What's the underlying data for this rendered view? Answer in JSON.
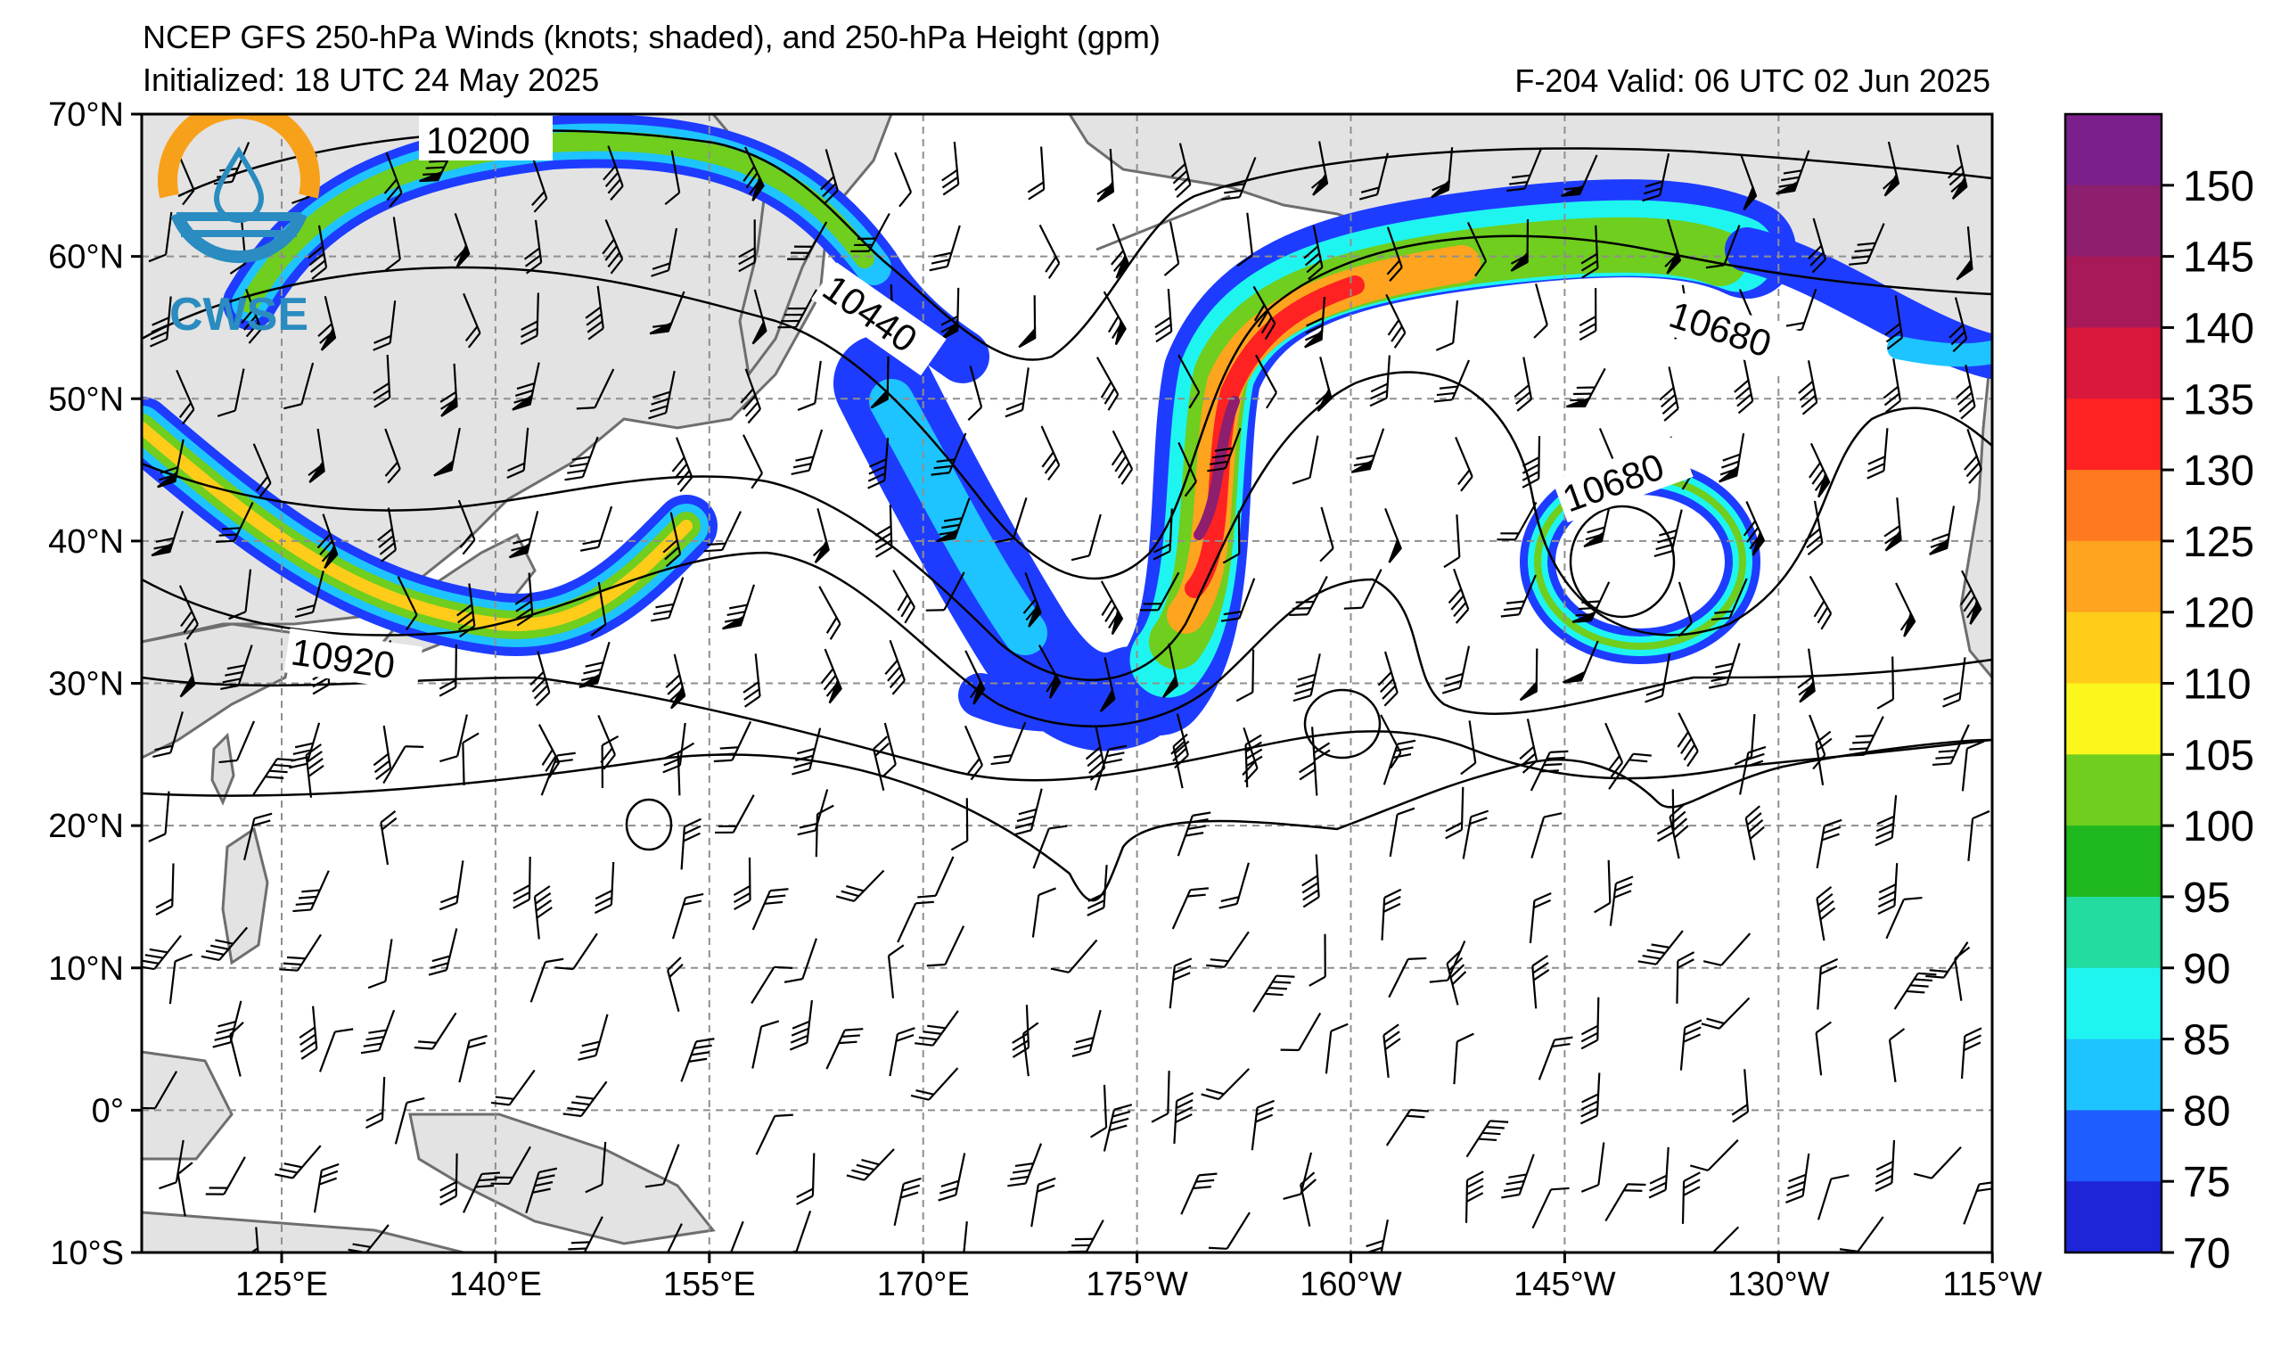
{
  "header": {
    "title": "NCEP GFS 250-hPa Winds (knots; shaded), and 250-hPa Height (gpm)",
    "initialized": "Initialized: 18 UTC 24 May 2025",
    "valid": "F-204  Valid: 06 UTC 02 Jun 2025"
  },
  "logo": {
    "text": "CWSE",
    "ring_color": "#f7a11a",
    "accent_color": "#2a8cc0"
  },
  "axes": {
    "lat_labels": [
      "70°N",
      "60°N",
      "50°N",
      "40°N",
      "30°N",
      "20°N",
      "10°N",
      "0°",
      "10°S"
    ],
    "lon_labels": [
      "125°E",
      "140°E",
      "155°E",
      "170°E",
      "175°W",
      "160°W",
      "145°W",
      "130°W",
      "115°W"
    ]
  },
  "contour_labels": [
    "10200",
    "10440",
    "10680",
    "10680",
    "10920"
  ],
  "colorbar": {
    "ticks": [
      "150",
      "145",
      "140",
      "135",
      "130",
      "125",
      "120",
      "110",
      "105",
      "100",
      "95",
      "90",
      "85",
      "80",
      "75",
      "70"
    ],
    "colors": [
      "#7b1f8c",
      "#8e1e6e",
      "#a8195a",
      "#d8173d",
      "#ff2222",
      "#ff7a1e",
      "#ffa41e",
      "#ffcc1a",
      "#fbf71c",
      "#6fce1e",
      "#1fb81f",
      "#22dca0",
      "#1ff5f0",
      "#1ec4ff",
      "#1e5dff",
      "#1e24d8"
    ]
  },
  "colors": {
    "land": "#e3e3e3",
    "coastline": "#6e6e6e",
    "grid": "#8f8f8f",
    "contour": "#000000"
  }
}
